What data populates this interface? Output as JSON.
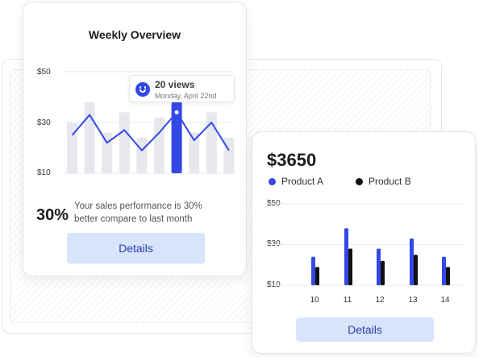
{
  "weekly_overview": {
    "title": "Weekly Overview",
    "y_ticks": [
      "$50",
      "$30",
      "$10"
    ],
    "tooltip": {
      "views": "20 views",
      "date": "Monday, April 22nd"
    },
    "stat_percent": "30%",
    "stat_text": "Your sales performance is 30% better compare to last month",
    "details_label": "Details"
  },
  "product_card": {
    "total": "$3650",
    "legend": [
      "Product A",
      "Product B"
    ],
    "y_ticks": [
      "$50",
      "$30",
      "$10"
    ],
    "x_ticks": [
      "10",
      "11",
      "12",
      "13",
      "14"
    ],
    "details_label": "Details"
  },
  "colors": {
    "accent": "#3348e6",
    "product_b": "#111111",
    "bar_muted": "#e6e8ee",
    "button_bg": "#d7e4fb"
  },
  "chart_data": [
    {
      "type": "bar",
      "title": "Weekly Overview",
      "ylim": [
        10,
        50
      ],
      "bars": [
        30,
        38,
        26,
        34,
        24,
        32,
        38,
        26,
        34,
        24
      ],
      "line": [
        25,
        33,
        22,
        27,
        19,
        26,
        34,
        23,
        30,
        19
      ],
      "highlight_index": 6,
      "y_ticks": [
        "$50",
        "$30",
        "$10"
      ]
    },
    {
      "type": "bar",
      "title": "$3650",
      "categories": [
        "10",
        "11",
        "12",
        "13",
        "14"
      ],
      "series": [
        {
          "name": "Product A",
          "values": [
            24,
            38,
            28,
            33,
            24
          ]
        },
        {
          "name": "Product B",
          "values": [
            19,
            28,
            22,
            25,
            19
          ]
        }
      ],
      "ylim": [
        10,
        50
      ],
      "y_ticks": [
        "$50",
        "$30",
        "$10"
      ]
    }
  ]
}
